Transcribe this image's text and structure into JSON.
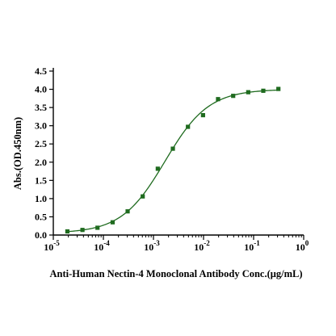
{
  "chart_data": {
    "type": "scatter",
    "xscale": "log",
    "xlim": [
      1e-05,
      1
    ],
    "ylim": [
      0,
      4.5
    ],
    "xlabel": "Anti-Human Nectin-4 Monoclonal Antibody Conc.(μg/mL)",
    "ylabel": "Abs.(OD.450nm)",
    "x_ticks": [
      {
        "value": 1e-05,
        "base": "10",
        "exp": "-5"
      },
      {
        "value": 0.0001,
        "base": "10",
        "exp": "-4"
      },
      {
        "value": 0.001,
        "base": "10",
        "exp": "-3"
      },
      {
        "value": 0.01,
        "base": "10",
        "exp": "-2"
      },
      {
        "value": 0.1,
        "base": "10",
        "exp": "-1"
      },
      {
        "value": 1,
        "base": "10",
        "exp": "0"
      }
    ],
    "y_ticks": [
      {
        "value": 0,
        "label": "0.0"
      },
      {
        "value": 0.5,
        "label": "0.5"
      },
      {
        "value": 1.0,
        "label": "1.0"
      },
      {
        "value": 1.5,
        "label": "1.5"
      },
      {
        "value": 2.0,
        "label": "2.0"
      },
      {
        "value": 2.5,
        "label": "2.5"
      },
      {
        "value": 3.0,
        "label": "3.0"
      },
      {
        "value": 3.5,
        "label": "3.5"
      },
      {
        "value": 4.0,
        "label": "4.0"
      },
      {
        "value": 4.5,
        "label": "4.5"
      }
    ],
    "series": [
      {
        "x": [
          1.91e-05,
          3.82e-05,
          7.63e-05,
          0.000153,
          0.000305,
          0.00061,
          0.00122,
          0.00244,
          0.00488,
          0.00977,
          0.0195,
          0.0391,
          0.0781,
          0.156,
          0.3125
        ],
        "y": [
          0.1,
          0.14,
          0.2,
          0.35,
          0.65,
          1.06,
          1.82,
          2.37,
          2.97,
          3.29,
          3.73,
          3.82,
          3.92,
          3.96,
          4.01
        ],
        "fit": "4PL"
      }
    ],
    "colors": {
      "series": "#1f6b1f",
      "axis": "#000000"
    }
  }
}
